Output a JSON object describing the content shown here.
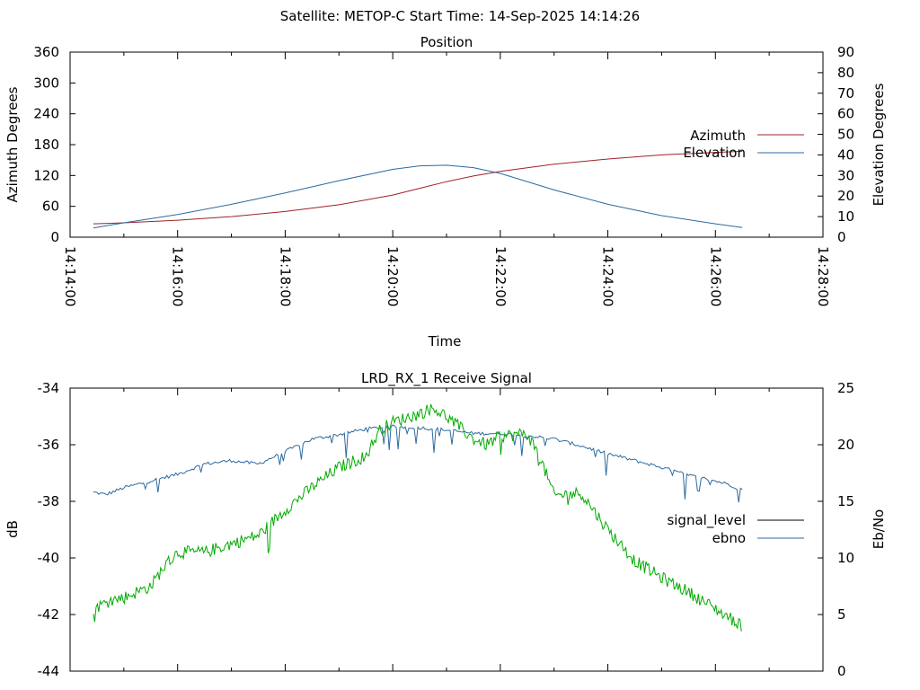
{
  "header": {
    "text": "Satellite: METOP-C    Start Time: 14-Sep-2025 14:14:26"
  },
  "chart_data": [
    {
      "type": "line",
      "title": "Position",
      "xlabel": "Time",
      "ylabel": "Azimuth Degrees",
      "y2label": "Elevation Degrees",
      "xlim": [
        "14:14:00",
        "14:28:00"
      ],
      "xticks": [
        "14:14:00",
        "14:16:00",
        "14:18:00",
        "14:20:00",
        "14:22:00",
        "14:24:00",
        "14:26:00",
        "14:28:00"
      ],
      "ylim": [
        0,
        360
      ],
      "yticks": [
        "0",
        "60",
        "120",
        "180",
        "240",
        "300",
        "360"
      ],
      "y2lim": [
        0,
        90
      ],
      "y2ticks": [
        "0",
        "10",
        "20",
        "30",
        "40",
        "50",
        "60",
        "70",
        "80",
        "90"
      ],
      "grid": false,
      "legend_position": "right",
      "series": [
        {
          "name": "Azimuth",
          "axis": "y",
          "color": "#a0212b",
          "x": [
            "14:14:26",
            "14:15:00",
            "14:16:00",
            "14:17:00",
            "14:18:00",
            "14:19:00",
            "14:20:00",
            "14:20:30",
            "14:21:00",
            "14:21:30",
            "14:22:00",
            "14:23:00",
            "14:24:00",
            "14:25:00",
            "14:26:00",
            "14:26:30"
          ],
          "values": [
            26,
            28,
            33,
            40,
            50,
            63,
            82,
            95,
            108,
            119,
            128,
            142,
            152,
            160,
            165,
            167
          ]
        },
        {
          "name": "Elevation",
          "axis": "y2",
          "color": "#2d6a9f",
          "x": [
            "14:14:26",
            "14:15:00",
            "14:16:00",
            "14:17:00",
            "14:18:00",
            "14:19:00",
            "14:20:00",
            "14:20:30",
            "14:21:00",
            "14:21:30",
            "14:22:00",
            "14:23:00",
            "14:24:00",
            "14:25:00",
            "14:26:00",
            "14:26:30"
          ],
          "values": [
            4.5,
            7,
            11,
            16,
            21.5,
            27.5,
            33,
            34.7,
            35,
            33.8,
            31,
            23,
            16,
            10.5,
            6.5,
            4.7
          ]
        }
      ]
    },
    {
      "type": "line",
      "title": "LRD_RX_1 Receive Signal",
      "xlabel": "",
      "ylabel": "dB",
      "y2label": "Eb/No",
      "xlim": [
        "14:14:00",
        "14:28:00"
      ],
      "ylim": [
        -44,
        -34
      ],
      "yticks": [
        "-44",
        "-42",
        "-40",
        "-38",
        "-36",
        "-34"
      ],
      "y2lim": [
        0,
        25
      ],
      "y2ticks": [
        "0",
        "5",
        "10",
        "15",
        "20",
        "25"
      ],
      "grid": false,
      "legend_position": "right",
      "series": [
        {
          "name": "signal_level",
          "axis": "y",
          "color": "#000000",
          "x": [],
          "values": []
        },
        {
          "name": "ebno",
          "axis": "y2",
          "color": "#2d6a9f",
          "x": [
            "14:14:26",
            "14:14:40",
            "14:15:00",
            "14:15:30",
            "14:16:00",
            "14:16:30",
            "14:17:00",
            "14:17:30",
            "14:18:00",
            "14:18:30",
            "14:19:00",
            "14:19:30",
            "14:20:00",
            "14:20:30",
            "14:21:00",
            "14:21:30",
            "14:22:00",
            "14:22:30",
            "14:23:00",
            "14:23:30",
            "14:24:00",
            "14:24:30",
            "14:25:00",
            "14:25:30",
            "14:26:00",
            "14:26:15",
            "14:26:30"
          ],
          "values": [
            15.8,
            15.6,
            16.2,
            16.8,
            17.4,
            18.3,
            18.6,
            18.3,
            19.4,
            20.5,
            20.9,
            21.4,
            21.6,
            21.5,
            21.3,
            21.0,
            21.0,
            20.8,
            20.5,
            19.9,
            19.2,
            18.6,
            18.0,
            17.3,
            16.8,
            16.5,
            16.0
          ]
        },
        {
          "name": "",
          "axis": "y",
          "color": "#00aa00",
          "x": [
            "14:14:26",
            "14:14:45",
            "14:15:00",
            "14:15:30",
            "14:15:45",
            "14:16:00",
            "14:16:30",
            "14:17:00",
            "14:17:30",
            "14:18:00",
            "14:18:30",
            "14:19:00",
            "14:19:30",
            "14:19:45",
            "14:20:00",
            "14:20:30",
            "14:20:45",
            "14:21:00",
            "14:21:30",
            "14:21:45",
            "14:22:00",
            "14:22:30",
            "14:22:45",
            "14:23:00",
            "14:23:30",
            "14:24:00",
            "14:24:30",
            "14:25:00",
            "14:25:30",
            "14:26:00",
            "14:26:30"
          ],
          "values": [
            -41.8,
            -41.5,
            -41.4,
            -41.0,
            -40.3,
            -39.8,
            -39.8,
            -39.5,
            -39.2,
            -38.3,
            -37.5,
            -36.8,
            -36.4,
            -35.5,
            -35.2,
            -34.9,
            -34.7,
            -35.0,
            -35.8,
            -36.0,
            -35.7,
            -35.6,
            -36.5,
            -37.8,
            -37.7,
            -39.0,
            -40.1,
            -40.7,
            -41.2,
            -41.8,
            -42.4
          ]
        }
      ]
    }
  ]
}
